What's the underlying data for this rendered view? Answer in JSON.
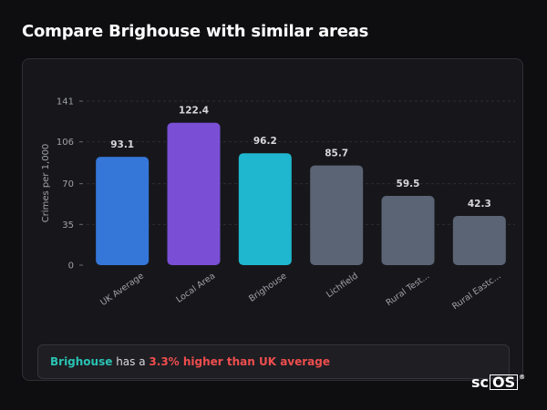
{
  "page": {
    "heading": "Compare Brighouse with similar areas"
  },
  "chart_data": {
    "type": "bar",
    "categories": [
      "UK Average",
      "Local Area",
      "Brighouse",
      "Lichfield",
      "Rural Test...",
      "Rural Eastc..."
    ],
    "values": [
      93.1,
      122.4,
      96.2,
      85.7,
      59.5,
      42.3
    ],
    "value_labels": [
      "93.1",
      "122.4",
      "96.2",
      "85.7",
      "59.5",
      "42.3"
    ],
    "colors": [
      "#3577d9",
      "#7a4fd6",
      "#1fb7cf",
      "#5b6474",
      "#5b6474",
      "#5b6474"
    ],
    "ylabel": "Crimes per 1,000",
    "yticks": [
      0,
      35,
      70,
      106,
      141
    ],
    "ylim": [
      0,
      141
    ],
    "grid": true
  },
  "summary": {
    "location": "Brighouse",
    "middle": " has a ",
    "comparison": "3.3% higher than UK average"
  },
  "brand": {
    "prefix": "sc",
    "boxed": "OS",
    "mark": "®"
  }
}
